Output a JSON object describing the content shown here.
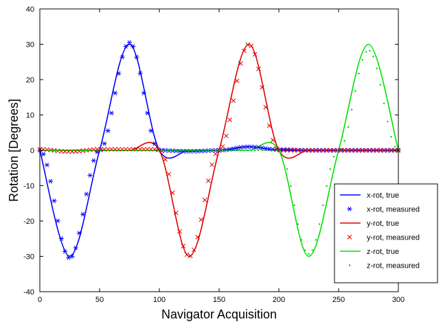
{
  "chart_data": {
    "type": "line",
    "title": "",
    "xlabel": "Navigator Acquisition",
    "ylabel": "Rotation [Degrees]",
    "xlim": [
      0,
      300
    ],
    "ylim": [
      -40,
      40
    ],
    "x_ticks": [
      0,
      50,
      100,
      150,
      200,
      250,
      300
    ],
    "y_ticks": [
      -40,
      -30,
      -20,
      -10,
      0,
      10,
      20,
      30,
      40
    ],
    "grid": false,
    "legend_position": "bottom-right",
    "series": [
      {
        "name": "x-rot, true",
        "style": "line",
        "color": "#0000ff",
        "x": [
          0,
          25,
          50,
          75,
          100,
          125,
          150,
          175,
          200,
          225,
          250,
          275,
          300
        ],
        "y": [
          0,
          -30,
          0,
          30,
          0,
          0,
          0,
          1,
          0,
          0,
          0,
          0,
          0
        ]
      },
      {
        "name": "x-rot, measured",
        "style": "asterisk",
        "color": "#0000ff",
        "x": [
          0,
          25,
          50,
          75,
          100,
          125,
          150,
          175,
          200,
          225,
          250,
          275,
          300
        ],
        "y": [
          0,
          -30.5,
          0,
          30.5,
          0,
          -0.3,
          0,
          1,
          0.2,
          0,
          0,
          0,
          0
        ]
      },
      {
        "name": "y-rot, true",
        "style": "line",
        "color": "#e00000",
        "x": [
          0,
          25,
          50,
          75,
          100,
          125,
          150,
          175,
          200,
          225,
          250,
          275,
          300
        ],
        "y": [
          0,
          0,
          0,
          0,
          0,
          -30,
          0,
          30,
          0,
          0,
          0,
          0,
          0
        ]
      },
      {
        "name": "y-rot, measured",
        "style": "cross",
        "color": "#e00000",
        "x": [
          0,
          25,
          50,
          75,
          100,
          125,
          150,
          175,
          200,
          225,
          250,
          275,
          300
        ],
        "y": [
          0.3,
          -0.4,
          0.3,
          0.3,
          0.3,
          -30,
          0,
          30,
          0,
          0,
          0,
          0,
          0
        ]
      },
      {
        "name": "z-rot, true",
        "style": "line",
        "color": "#00e000",
        "x": [
          0,
          25,
          50,
          75,
          100,
          125,
          150,
          175,
          200,
          225,
          250,
          275,
          300
        ],
        "y": [
          0,
          0,
          0,
          0,
          0,
          0,
          0,
          0,
          0,
          -30,
          0,
          30,
          0
        ]
      },
      {
        "name": "z-rot, measured",
        "style": "dot",
        "color": "#00cc00",
        "x": [
          0,
          25,
          50,
          75,
          100,
          125,
          150,
          175,
          200,
          225,
          250,
          275,
          300
        ],
        "y": [
          0,
          0,
          0,
          0,
          0,
          0,
          0,
          0,
          0,
          -29.3,
          0,
          28.3,
          0
        ]
      }
    ]
  }
}
